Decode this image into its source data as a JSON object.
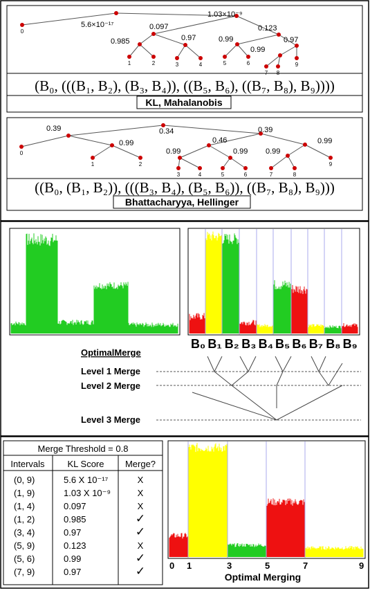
{
  "top": {
    "tree1": {
      "edge_labels": [
        "5.6×10⁻¹⁷",
        "1.03×10⁻⁹",
        "0.097",
        "0.123",
        "0.985",
        "0.97",
        "0.99",
        "0.97",
        "0.99"
      ],
      "leaf_labels": [
        "0",
        "1",
        "2",
        "3",
        "4",
        "5",
        "6",
        "7",
        "8",
        "9"
      ],
      "formula": "(B₀, (((B₁, B₂), (B₃, B₄)), ((B₅, B₆), ((B₇, B₈), B₉))))",
      "method": "KL, Mahalanobis"
    },
    "tree2": {
      "edge_labels": [
        "0.39",
        "0.34",
        "0.39",
        "0.99",
        "0.46",
        "0.99",
        "0.99",
        "0.99",
        "0.99"
      ],
      "leaf_labels": [
        "0",
        "1",
        "2",
        "3",
        "4",
        "5",
        "6",
        "7",
        "8",
        "9"
      ],
      "formula": "((B₀, (B₁, B₂)), (((B₃, B₄), (B₅, B₆)), ((B₇, B₈), B₉)))",
      "method": "Bhattacharyya, Hellinger"
    }
  },
  "middle": {
    "bins": [
      "B₀",
      "B₁",
      "B₂",
      "B₃",
      "B₄",
      "B₅",
      "B₆",
      "B₇",
      "B₈",
      "B₉"
    ],
    "optimal_merge_title": "OptimalMerge",
    "levels": [
      "Level 1 Merge",
      "Level 2 Merge",
      "Level 3 Merge"
    ]
  },
  "bottom": {
    "threshold_title": "Merge Threshold = 0.8",
    "headers": [
      "Intervals",
      "KL Score",
      "Merge?"
    ],
    "rows": [
      {
        "interval": "(0, 9)",
        "score": "5.6 X 10⁻¹⁷",
        "merge": "X"
      },
      {
        "interval": "(1, 9)",
        "score": "1.03 X 10⁻⁹",
        "merge": "X"
      },
      {
        "interval": "(1, 4)",
        "score": "0.097",
        "merge": "X"
      },
      {
        "interval": "(1, 2)",
        "score": "0.985",
        "merge": "✓"
      },
      {
        "interval": "(3, 4)",
        "score": "0.97",
        "merge": "✓"
      },
      {
        "interval": "(5, 9)",
        "score": "0.123",
        "merge": "X"
      },
      {
        "interval": "(5, 6)",
        "score": "0.99",
        "merge": "✓"
      },
      {
        "interval": "(7, 9)",
        "score": "0.97",
        "merge": "✓"
      }
    ],
    "axis_ticks": [
      "0",
      "1",
      "3",
      "5",
      "7",
      "9"
    ],
    "chart_caption": "Optimal Merging"
  },
  "colors": {
    "node": "#cc0000",
    "green": "#22cc22",
    "yellow": "#ffff00",
    "red": "#ee1111",
    "divider": "#aaaaee"
  }
}
